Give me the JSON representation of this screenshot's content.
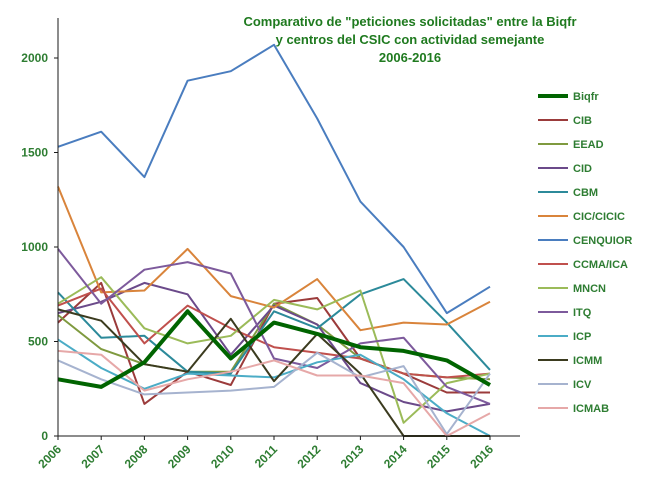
{
  "chart_data": {
    "type": "line",
    "title_lines": [
      "Comparativo de \"peticiones solicitadas\" entre  la Biqfr",
      "y centros del CSIC con actividad semejante",
      "2006-2016"
    ],
    "xlabel": "",
    "ylabel": "",
    "x": [
      "2006",
      "2007",
      "2008",
      "2009",
      "2010",
      "2011",
      "2012",
      "2013",
      "2014",
      "2015",
      "2016"
    ],
    "ylim": [
      0,
      2000
    ],
    "yticks": [
      0,
      500,
      1000,
      1500,
      2000
    ],
    "grid": false,
    "legend_position": "right",
    "series": [
      {
        "name": "Biqfr",
        "color": "#006400",
        "values": [
          300,
          260,
          390,
          660,
          410,
          600,
          540,
          470,
          450,
          400,
          270
        ]
      },
      {
        "name": "CIB",
        "color": "#9b3b3b",
        "values": [
          600,
          810,
          170,
          340,
          270,
          700,
          730,
          410,
          330,
          230,
          230
        ]
      },
      {
        "name": "EEAD",
        "color": "#7f9a3f",
        "values": [
          640,
          460,
          380,
          340,
          340,
          700,
          590,
          410,
          330,
          310,
          300
        ]
      },
      {
        "name": "CID",
        "color": "#6b4a8a",
        "values": [
          650,
          710,
          810,
          750,
          430,
          690,
          590,
          280,
          180,
          130,
          170
        ]
      },
      {
        "name": "CBM",
        "color": "#2c8a9a",
        "values": [
          760,
          520,
          530,
          340,
          330,
          660,
          570,
          750,
          830,
          600,
          350
        ]
      },
      {
        "name": "CIC/CICIC",
        "color": "#d9843b",
        "values": [
          1320,
          760,
          770,
          990,
          740,
          680,
          830,
          560,
          600,
          590,
          710
        ]
      },
      {
        "name": "CENQUIOR",
        "color": "#4a7dbf",
        "values": [
          1530,
          1610,
          1370,
          1880,
          1930,
          2070,
          1680,
          1240,
          1000,
          650,
          790
        ]
      },
      {
        "name": "CCMA/ICA",
        "color": "#c0504d",
        "values": [
          690,
          780,
          490,
          690,
          570,
          470,
          440,
          410,
          330,
          310,
          330
        ]
      },
      {
        "name": "MNCN",
        "color": "#9bbb59",
        "values": [
          700,
          840,
          570,
          490,
          530,
          720,
          670,
          770,
          70,
          280,
          330
        ]
      },
      {
        "name": "ITQ",
        "color": "#7d5a9c",
        "values": [
          990,
          700,
          880,
          920,
          860,
          410,
          360,
          490,
          520,
          260,
          170
        ]
      },
      {
        "name": "ICP",
        "color": "#4bacc6",
        "values": [
          510,
          360,
          250,
          330,
          320,
          310,
          390,
          430,
          300,
          120,
          0
        ]
      },
      {
        "name": "ICMM",
        "color": "#3b3b1f",
        "values": [
          670,
          610,
          380,
          340,
          620,
          290,
          540,
          330,
          0,
          0,
          0
        ]
      },
      {
        "name": "ICV",
        "color": "#a6b3cf",
        "values": [
          400,
          300,
          220,
          230,
          240,
          260,
          440,
          310,
          370,
          10,
          330
        ]
      },
      {
        "name": "ICMAB",
        "color": "#e6a8a8",
        "values": [
          450,
          430,
          240,
          300,
          340,
          400,
          320,
          320,
          280,
          0,
          120
        ]
      }
    ]
  }
}
